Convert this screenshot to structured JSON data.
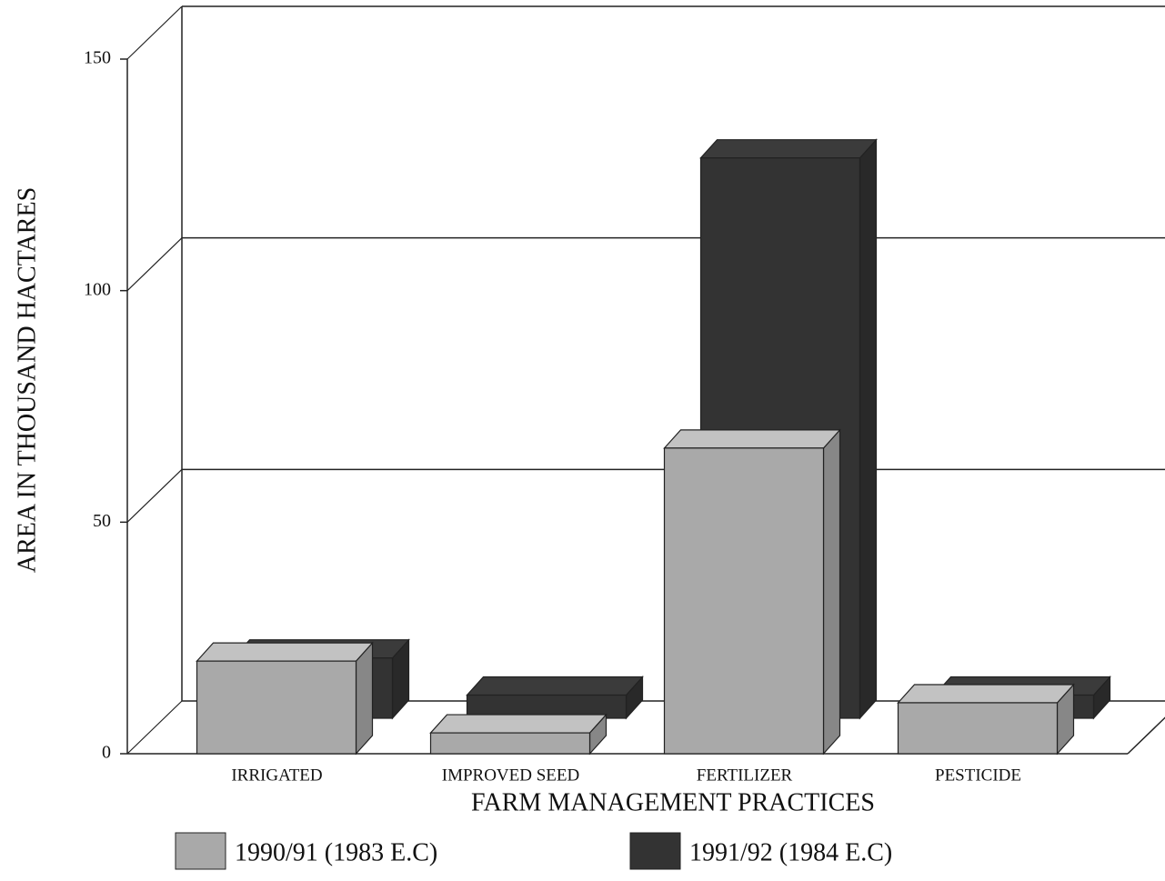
{
  "chart_data": {
    "type": "bar3d",
    "x_label": "FARM MANAGEMENT PRACTICES",
    "y_label": "AREA IN THOUSAND HACTARES",
    "categories": [
      "IRRIGATED",
      "IMPROVED SEED",
      "FERTILIZER",
      "PESTICIDE"
    ],
    "series": [
      {
        "name": "1990/91 (1983 E.C)",
        "color": "#a9a9a9",
        "values": [
          20,
          4.5,
          66,
          11
        ]
      },
      {
        "name": "1991/92 (1984 E.C)",
        "color": "#333333",
        "values": [
          13,
          5,
          121,
          5
        ]
      }
    ],
    "ylim": [
      0,
      150
    ],
    "yticks": [
      0,
      50,
      100,
      150
    ],
    "grid": true,
    "legend": "bottom"
  }
}
